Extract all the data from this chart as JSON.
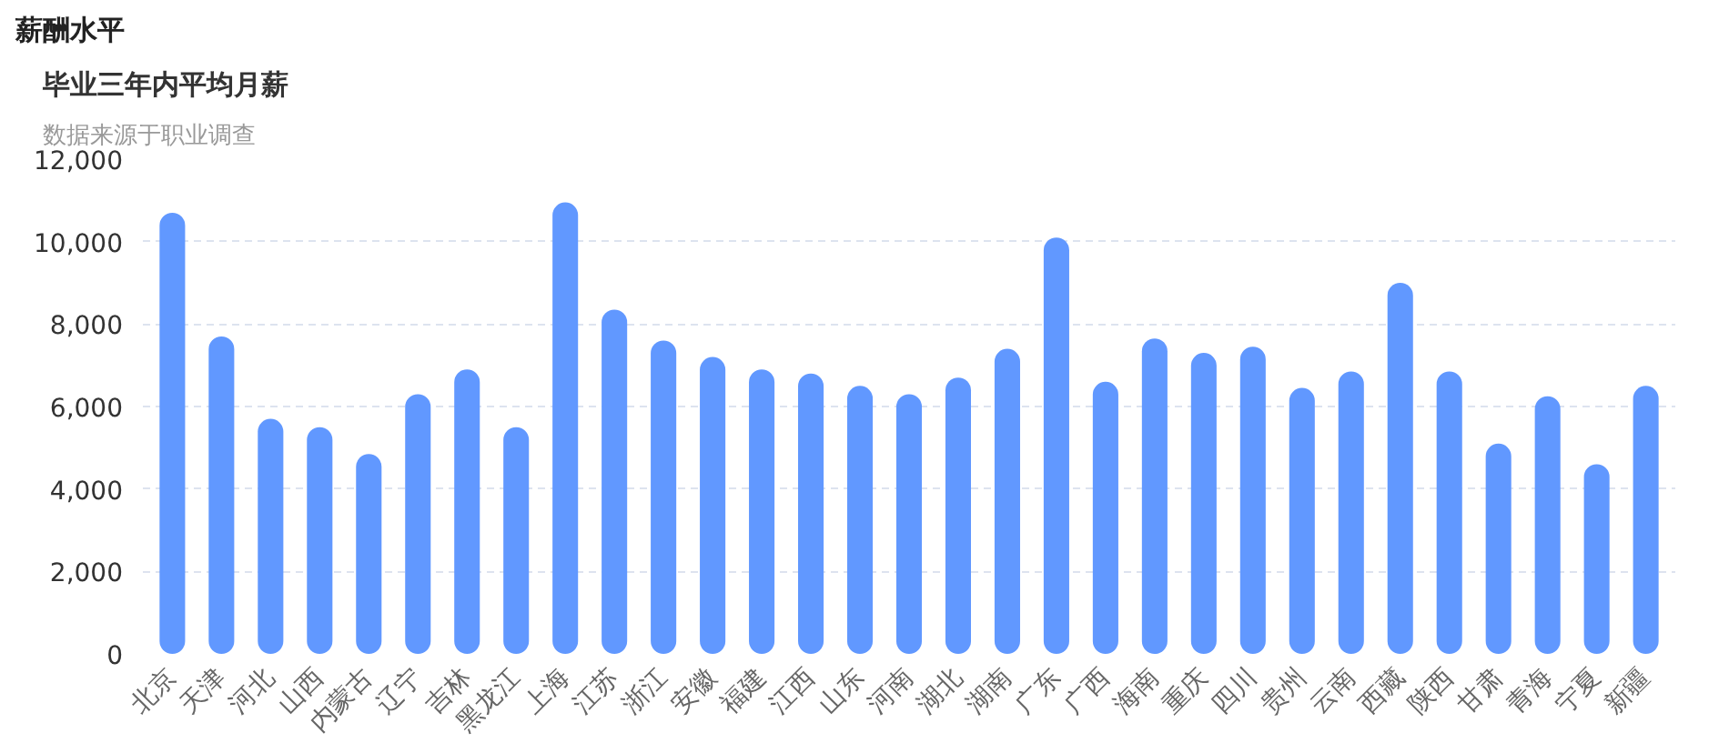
{
  "chart_data": {
    "type": "bar",
    "title": "薪酬水平",
    "subtitle": "毕业三年内平均月薪",
    "annotations": [
      "数据来源于职业调查"
    ],
    "categories": [
      "北京",
      "天津",
      "河北",
      "山西",
      "内蒙古",
      "辽宁",
      "吉林",
      "黑龙江",
      "上海",
      "江苏",
      "浙江",
      "安徽",
      "福建",
      "江西",
      "山东",
      "河南",
      "湖北",
      "湖南",
      "广东",
      "广西",
      "海南",
      "重庆",
      "四川",
      "贵州",
      "云南",
      "西藏",
      "陕西",
      "甘肃",
      "青海",
      "宁夏",
      "新疆"
    ],
    "values": [
      10700,
      7700,
      5700,
      5500,
      4850,
      6300,
      6900,
      5500,
      10950,
      8350,
      7600,
      7200,
      6900,
      6800,
      6500,
      6300,
      6700,
      7400,
      10100,
      6600,
      7650,
      7300,
      7450,
      6450,
      6850,
      9000,
      6850,
      5100,
      6250,
      4600,
      6500
    ],
    "color": "#6198ff",
    "ylim": [
      0,
      12000
    ],
    "yticks": [
      0,
      {
        "value": 2000,
        "label": "2,000"
      },
      {
        "value": 4000,
        "label": "4,000"
      },
      {
        "value": 6000,
        "label": "6,000"
      },
      {
        "value": 8000,
        "label": "8,000"
      },
      {
        "value": 10000,
        "label": "10,000"
      },
      {
        "value": 12000,
        "label": "12,000"
      }
    ],
    "grid": "y"
  }
}
